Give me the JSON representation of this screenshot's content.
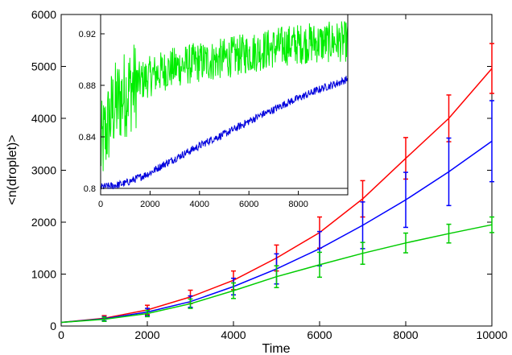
{
  "chart_data": [
    {
      "type": "line",
      "title": "",
      "xlabel": "Time",
      "ylabel": "<n(droplet)>",
      "xlim": [
        0,
        10000
      ],
      "ylim": [
        0,
        6000
      ],
      "x_ticks": [
        "0",
        "2000",
        "4000",
        "6000",
        "8000",
        "10000"
      ],
      "y_ticks": [
        "0",
        "1000",
        "2000",
        "3000",
        "4000",
        "5000",
        "6000"
      ],
      "grid": false,
      "legend": "none",
      "x": [
        0,
        1000,
        2000,
        3000,
        4000,
        5000,
        6000,
        7000,
        8000,
        9000,
        10000
      ],
      "series": [
        {
          "color": "#ff0000",
          "values": [
            70,
            150,
            310,
            560,
            880,
            1310,
            1800,
            2450,
            3230,
            4000,
            4960
          ],
          "err": [
            0,
            50,
            90,
            130,
            180,
            250,
            300,
            350,
            400,
            450,
            480
          ]
        },
        {
          "color": "#0000ff",
          "values": [
            70,
            140,
            270,
            470,
            760,
            1100,
            1490,
            1940,
            2430,
            2970,
            3560
          ],
          "err": [
            0,
            40,
            70,
            110,
            160,
            290,
            330,
            450,
            530,
            650,
            780
          ]
        },
        {
          "color": "#00cc00",
          "values": [
            70,
            130,
            240,
            430,
            680,
            950,
            1180,
            1400,
            1600,
            1780,
            1950
          ],
          "err": [
            0,
            40,
            60,
            90,
            150,
            210,
            240,
            210,
            190,
            180,
            150
          ]
        }
      ]
    },
    {
      "type": "line",
      "title": "",
      "xlabel": "",
      "ylabel": "",
      "xlim": [
        0,
        10000
      ],
      "ylim": [
        0.795,
        0.935
      ],
      "x_ticks": [
        "0",
        "2000",
        "4000",
        "6000",
        "8000"
      ],
      "y_ticks": [
        "0.8",
        "0.84",
        "0.88",
        "0.92"
      ],
      "grid": false,
      "legend": "none",
      "reference_line": 0.8,
      "x": [
        0,
        500,
        1000,
        1500,
        2000,
        2500,
        3000,
        3500,
        4000,
        4500,
        5000,
        5500,
        6000,
        6500,
        7000,
        7500,
        8000,
        8500,
        9000,
        9500,
        10000
      ],
      "series": [
        {
          "color": "#00ee00",
          "values": [
            0.83,
            0.862,
            0.874,
            0.882,
            0.887,
            0.891,
            0.894,
            0.896,
            0.898,
            0.899,
            0.901,
            0.903,
            0.905,
            0.907,
            0.909,
            0.911,
            0.912,
            0.913,
            0.913,
            0.914,
            0.914
          ],
          "noise": 0.016
        },
        {
          "color": "#0000dd",
          "values": [
            0.801,
            0.802,
            0.804,
            0.808,
            0.812,
            0.818,
            0.823,
            0.828,
            0.833,
            0.838,
            0.842,
            0.847,
            0.852,
            0.857,
            0.861,
            0.866,
            0.87,
            0.874,
            0.878,
            0.881,
            0.885
          ],
          "noise": 0.003
        }
      ]
    }
  ]
}
